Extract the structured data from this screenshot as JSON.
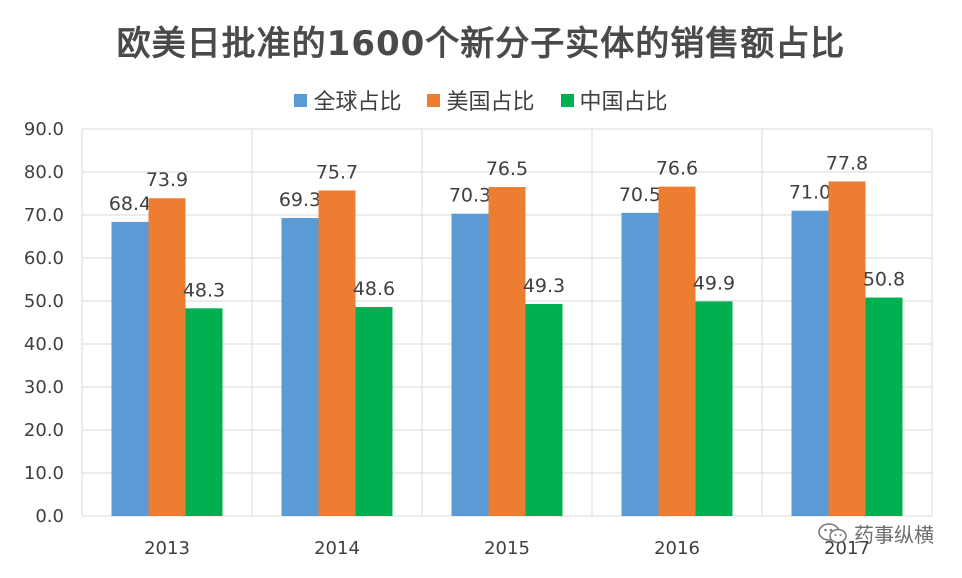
{
  "chart_data": {
    "type": "bar",
    "title": "欧美日批准的1600个新分子实体的销售额占比",
    "categories": [
      "2013",
      "2014",
      "2015",
      "2016",
      "2017"
    ],
    "series": [
      {
        "name": "全球占比",
        "color": "#5B9BD5",
        "values": [
          68.4,
          69.3,
          70.3,
          70.5,
          71.0
        ]
      },
      {
        "name": "美国占比",
        "color": "#ED7D31",
        "values": [
          73.9,
          75.7,
          76.5,
          76.6,
          77.8
        ]
      },
      {
        "name": "中国占比",
        "color": "#00B050",
        "values": [
          48.3,
          48.6,
          49.3,
          49.9,
          50.8
        ]
      }
    ],
    "ylim": [
      0,
      90
    ],
    "yticks": [
      "0.0",
      "10.0",
      "20.0",
      "30.0",
      "40.0",
      "50.0",
      "60.0",
      "70.0",
      "80.0",
      "90.0"
    ],
    "xlabel": "",
    "ylabel": "",
    "grid": true,
    "legend_position": "top"
  },
  "watermark": {
    "text": "药事纵横",
    "icon": "wechat-icon"
  }
}
